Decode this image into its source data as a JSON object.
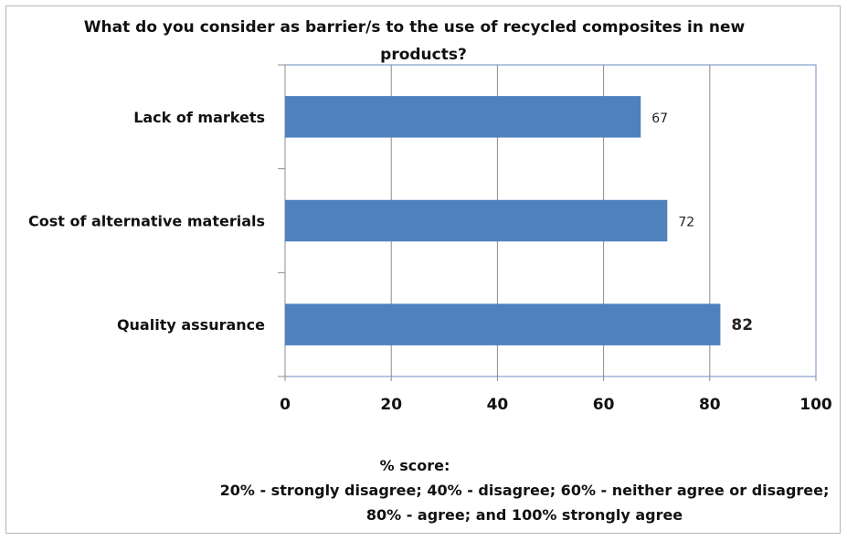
{
  "chart_data": {
    "type": "bar",
    "orientation": "horizontal",
    "title_line1": "What do you consider as barrier/s to the use of recycled composites in new",
    "title_line2": "products?",
    "categories": [
      "Lack of markets",
      "Cost of alternative materials",
      "Quality assurance"
    ],
    "values": [
      67,
      72,
      82
    ],
    "value_labels": [
      "67",
      "72",
      "82"
    ],
    "xlim": [
      0,
      100
    ],
    "x_ticks": [
      "0",
      "20",
      "40",
      "60",
      "80",
      "100"
    ],
    "xlabel_line1": "% score:",
    "xlabel_line2": "20% - strongly disagree; 40% -  disagree;  60% - neither agree or disagree;",
    "xlabel_line3": "80% -  agree; and 100% strongly agree",
    "grid": true,
    "legend": "none",
    "bar_color": "#4f81bd"
  }
}
